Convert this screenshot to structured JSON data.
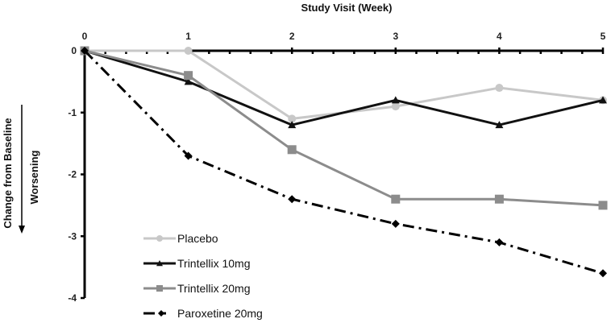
{
  "chart_data": {
    "type": "line",
    "title": "",
    "xlabel": "Study Visit (Week)",
    "ylabel": "Change from Baseline",
    "ylabel_secondary": "Worsening",
    "x": [
      0,
      1,
      2,
      3,
      4,
      5
    ],
    "x_tick_labels": [
      "0",
      "1",
      "2",
      "3",
      "4",
      "5"
    ],
    "y_tick_labels": [
      "0",
      "-1",
      "-2",
      "-3",
      "-4"
    ],
    "y_ticks": [
      0,
      -1,
      -2,
      -3,
      -4
    ],
    "xlim": [
      0,
      5
    ],
    "ylim": [
      -4,
      0
    ],
    "x_axis_position": "top",
    "grid": false,
    "legend_position": "bottom-left",
    "series": [
      {
        "name": "Placebo",
        "values": [
          0,
          0,
          -1.1,
          -0.9,
          -0.6,
          -0.8
        ],
        "color": "#c8c8c8",
        "marker": "circle",
        "dash": "solid"
      },
      {
        "name": "Trintellix 10mg",
        "values": [
          0,
          -0.5,
          -1.2,
          -0.8,
          -1.2,
          -0.8
        ],
        "color": "#111111",
        "marker": "triangle",
        "dash": "solid"
      },
      {
        "name": "Trintellix 20mg",
        "values": [
          0,
          -0.4,
          -1.6,
          -2.4,
          -2.4,
          -2.5
        ],
        "color": "#8c8c8c",
        "marker": "square",
        "dash": "solid"
      },
      {
        "name": "Paroxetine 20mg",
        "values": [
          0,
          -1.7,
          -2.4,
          -2.8,
          -3.1,
          -3.6
        ],
        "color": "#000000",
        "marker": "diamond",
        "dash": "dashdot"
      }
    ]
  }
}
